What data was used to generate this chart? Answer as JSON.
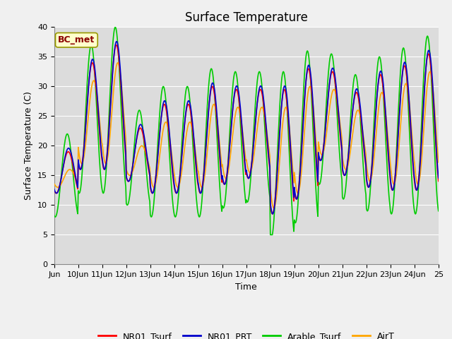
{
  "title": "Surface Temperature",
  "ylabel": "Surface Temperature (C)",
  "xlabel": "Time",
  "annotation": "BC_met",
  "ylim": [
    0,
    40
  ],
  "yticks": [
    0,
    5,
    10,
    15,
    20,
    25,
    30,
    35,
    40
  ],
  "xtick_labels": [
    "Jun",
    "10Jun",
    "11Jun",
    "12Jun",
    "13Jun",
    "14Jun",
    "15Jun",
    "16Jun",
    "17Jun",
    "18Jun",
    "19Jun",
    "20Jun",
    "21Jun",
    "22Jun",
    "23Jun",
    "24Jun",
    "25"
  ],
  "series": {
    "NR01_Tsurf": {
      "color": "#ff0000",
      "lw": 1.2
    },
    "NR01_PRT": {
      "color": "#0000cc",
      "lw": 1.2
    },
    "Arable_Tsurf": {
      "color": "#00cc00",
      "lw": 1.2
    },
    "AirT": {
      "color": "#ffa500",
      "lw": 1.2
    }
  },
  "fig_bg": "#f0f0f0",
  "plot_bg": "#dcdcdc",
  "grid_color": "#ffffff",
  "title_fontsize": 12,
  "label_fontsize": 9,
  "tick_fontsize": 8,
  "annotation_color": "#8b0000",
  "annotation_bg": "#ffffcc",
  "annotation_edge": "#999900"
}
